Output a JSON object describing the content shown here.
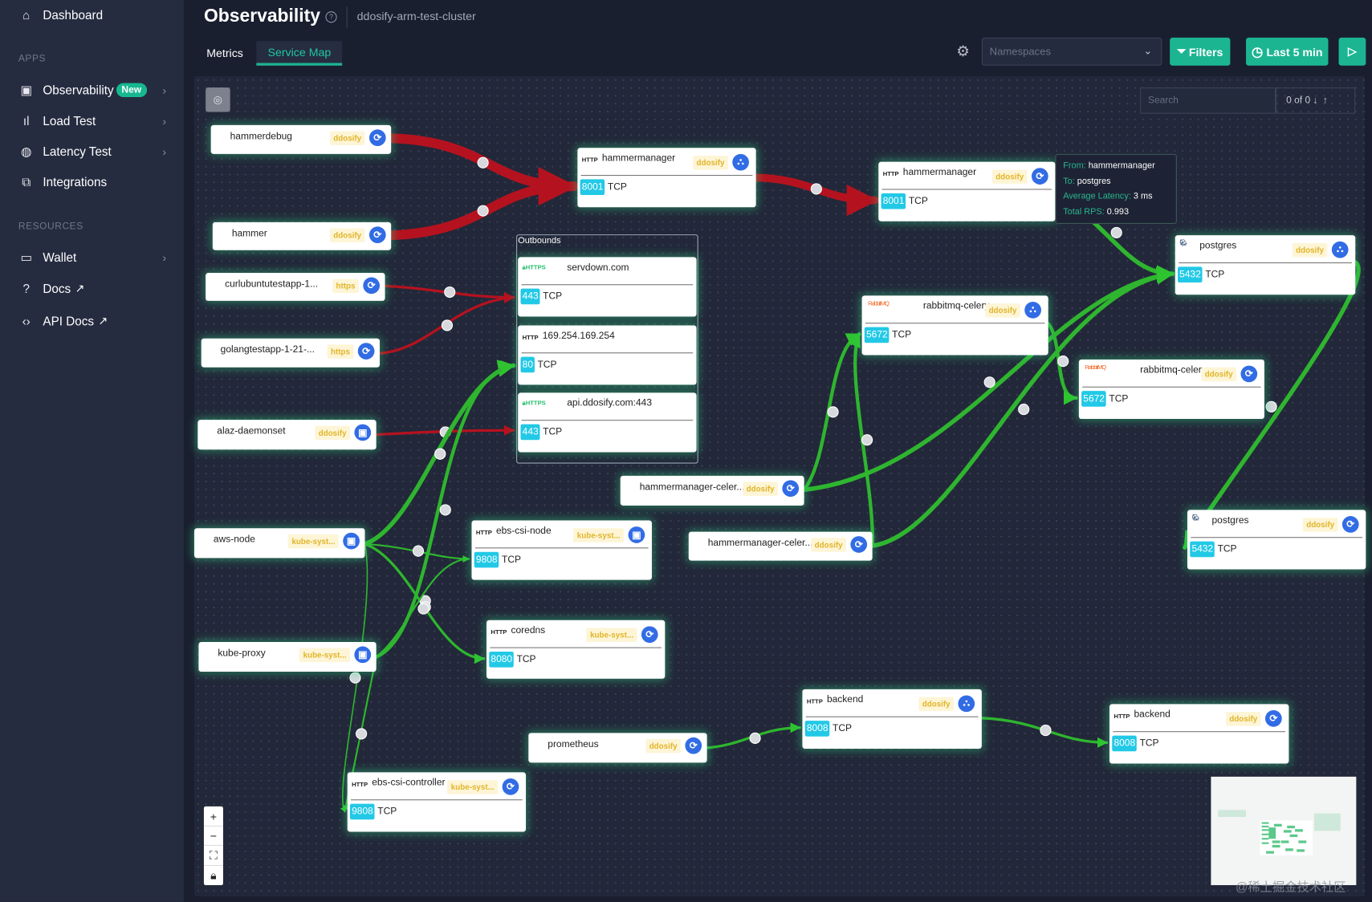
{
  "sidebar": {
    "items": [
      {
        "label": "Dashboard",
        "icon": "home-icon"
      },
      {
        "label": "Observability",
        "icon": "monitor-icon",
        "badge": "New"
      },
      {
        "label": "Load Test",
        "icon": "bar-chart-icon"
      },
      {
        "label": "Latency Test",
        "icon": "globe-icon"
      },
      {
        "label": "Integrations",
        "icon": "integrations-icon"
      },
      {
        "label": "Wallet",
        "icon": "wallet-icon"
      },
      {
        "label": "Docs",
        "icon": "help-circle-icon"
      },
      {
        "label": "API Docs",
        "icon": "code-icon"
      }
    ],
    "sections": {
      "apps": "APPS",
      "resources": "RESOURCES"
    }
  },
  "header": {
    "title": "Observability",
    "subtitle": "ddosify-arm-test-cluster"
  },
  "tabs": [
    {
      "label": "Metrics",
      "active": false
    },
    {
      "label": "Service Map",
      "active": true
    }
  ],
  "toolbar": {
    "namespaces_placeholder": "Namespaces",
    "filters": "Filters",
    "time_range": "Last 5 min"
  },
  "search": {
    "placeholder": "Search",
    "count": "0 of 0"
  },
  "tooltip": {
    "from_label": "From:",
    "from": "hammermanager",
    "to_label": "To:",
    "to": "postgres",
    "latency_label": "Average Latency:",
    "latency": "3 ms",
    "rps_label": "Total RPS:",
    "rps": "0.993"
  },
  "outbounds": {
    "title": "Outbounds",
    "items": [
      {
        "name": "servdown.com",
        "protocol": "HTTPS",
        "port": "443",
        "transport": "TCP"
      },
      {
        "name": "169.254.169.254",
        "protocol": "HTTP",
        "port": "80",
        "transport": "TCP"
      },
      {
        "name": "api.ddosify.com:443",
        "protocol": "HTTPS",
        "port": "443",
        "transport": "TCP"
      }
    ]
  },
  "nodes": [
    {
      "name": "hammerdebug",
      "namespace": "ddosify",
      "icon": "deployment-icon"
    },
    {
      "name": "hammer",
      "namespace": "ddosify",
      "icon": "deployment-icon"
    },
    {
      "name": "curlubuntutestapp-1...",
      "namespace": "https",
      "icon": "deployment-icon"
    },
    {
      "name": "golangtestapp-1-21-...",
      "namespace": "https",
      "icon": "deployment-icon"
    },
    {
      "name": "alaz-daemonset",
      "namespace": "ddosify",
      "icon": "daemonset-icon"
    },
    {
      "name": "aws-node",
      "namespace": "kube-syst...",
      "icon": "daemonset-icon"
    },
    {
      "name": "kube-proxy",
      "namespace": "kube-syst...",
      "icon": "daemonset-icon"
    },
    {
      "name": "prometheus",
      "namespace": "ddosify",
      "icon": "deployment-icon"
    },
    {
      "name": "hammermanager-celer...",
      "namespace": "ddosify",
      "icon": "deployment-icon"
    },
    {
      "name": "hammermanager-celer...",
      "namespace": "ddosify",
      "icon": "deployment-icon"
    },
    {
      "name": "hammermanager",
      "namespace": "ddosify",
      "protocol": "HTTP",
      "port": "8001",
      "transport": "TCP",
      "icon": "service-icon"
    },
    {
      "name": "hammermanager",
      "namespace": "ddosify",
      "protocol": "HTTP",
      "port": "8001",
      "transport": "TCP",
      "icon": "deployment-icon"
    },
    {
      "name": "postgres",
      "namespace": "ddosify",
      "protocol": "POSTGRES",
      "port": "5432",
      "transport": "TCP",
      "icon": "service-icon"
    },
    {
      "name": "rabbitmq-celery",
      "namespace": "ddosify",
      "protocol": "RabbitMQ",
      "port": "5672",
      "transport": "TCP",
      "icon": "service-icon"
    },
    {
      "name": "rabbitmq-celery",
      "namespace": "ddosify",
      "protocol": "RabbitMQ",
      "port": "5672",
      "transport": "TCP",
      "icon": "deployment-icon"
    },
    {
      "name": "postgres",
      "namespace": "ddosify",
      "protocol": "POSTGRES",
      "port": "5432",
      "transport": "TCP",
      "icon": "deployment-icon"
    },
    {
      "name": "ebs-csi-node",
      "namespace": "kube-syst...",
      "protocol": "HTTP",
      "port": "9808",
      "transport": "TCP",
      "icon": "daemonset-icon"
    },
    {
      "name": "coredns",
      "namespace": "kube-syst...",
      "protocol": "HTTP",
      "port": "8080",
      "transport": "TCP",
      "icon": "deployment-icon"
    },
    {
      "name": "backend",
      "namespace": "ddosify",
      "protocol": "HTTP",
      "port": "8008",
      "transport": "TCP",
      "icon": "service-icon"
    },
    {
      "name": "backend",
      "namespace": "ddosify",
      "protocol": "HTTP",
      "port": "8008",
      "transport": "TCP",
      "icon": "deployment-icon"
    },
    {
      "name": "ebs-csi-controller",
      "namespace": "kube-syst...",
      "protocol": "HTTP",
      "port": "9808",
      "transport": "TCP",
      "icon": "deployment-icon"
    }
  ],
  "edges": [
    {
      "from": "hammerdebug",
      "to": "hammermanager",
      "status": "error"
    },
    {
      "from": "hammer",
      "to": "hammermanager",
      "status": "error"
    },
    {
      "from": "hammermanager",
      "to": "hammermanager",
      "status": "error"
    },
    {
      "from": "curlubuntutestapp-1...",
      "to": "servdown.com",
      "status": "error"
    },
    {
      "from": "golangtestapp-1-21-...",
      "to": "servdown.com",
      "status": "error"
    },
    {
      "from": "alaz-daemonset",
      "to": "api.ddosify.com:443",
      "status": "error"
    },
    {
      "from": "hammermanager",
      "to": "postgres",
      "status": "ok"
    },
    {
      "from": "hammermanager-celer...",
      "to": "postgres",
      "status": "ok"
    },
    {
      "from": "hammermanager-celer...",
      "to": "postgres",
      "status": "ok"
    },
    {
      "from": "hammermanager-celer...",
      "to": "rabbitmq-celery",
      "status": "ok"
    },
    {
      "from": "hammermanager-celer...",
      "to": "rabbitmq-celery",
      "status": "ok"
    },
    {
      "from": "rabbitmq-celery",
      "to": "rabbitmq-celery",
      "status": "ok"
    },
    {
      "from": "postgres",
      "to": "postgres",
      "status": "ok"
    },
    {
      "from": "aws-node",
      "to": "169.254.169.254",
      "status": "ok"
    },
    {
      "from": "kube-proxy",
      "to": "169.254.169.254",
      "status": "ok"
    },
    {
      "from": "aws-node",
      "to": "ebs-csi-node",
      "status": "ok"
    },
    {
      "from": "aws-node",
      "to": "coredns",
      "status": "ok"
    },
    {
      "from": "kube-proxy",
      "to": "ebs-csi-node",
      "status": "ok"
    },
    {
      "from": "aws-node",
      "to": "ebs-csi-controller",
      "status": "ok"
    },
    {
      "from": "kube-proxy",
      "to": "ebs-csi-controller",
      "status": "ok"
    },
    {
      "from": "prometheus",
      "to": "backend",
      "status": "ok"
    },
    {
      "from": "backend",
      "to": "backend",
      "status": "ok"
    }
  ],
  "colors": {
    "accent": "#1cb592",
    "error_edge": "#b5121f",
    "ok_edge": "#2fb52f",
    "port_badge": "#22c9e6",
    "namespace_text": "#e2b52a"
  },
  "watermark": "@稀土掘金技术社区"
}
